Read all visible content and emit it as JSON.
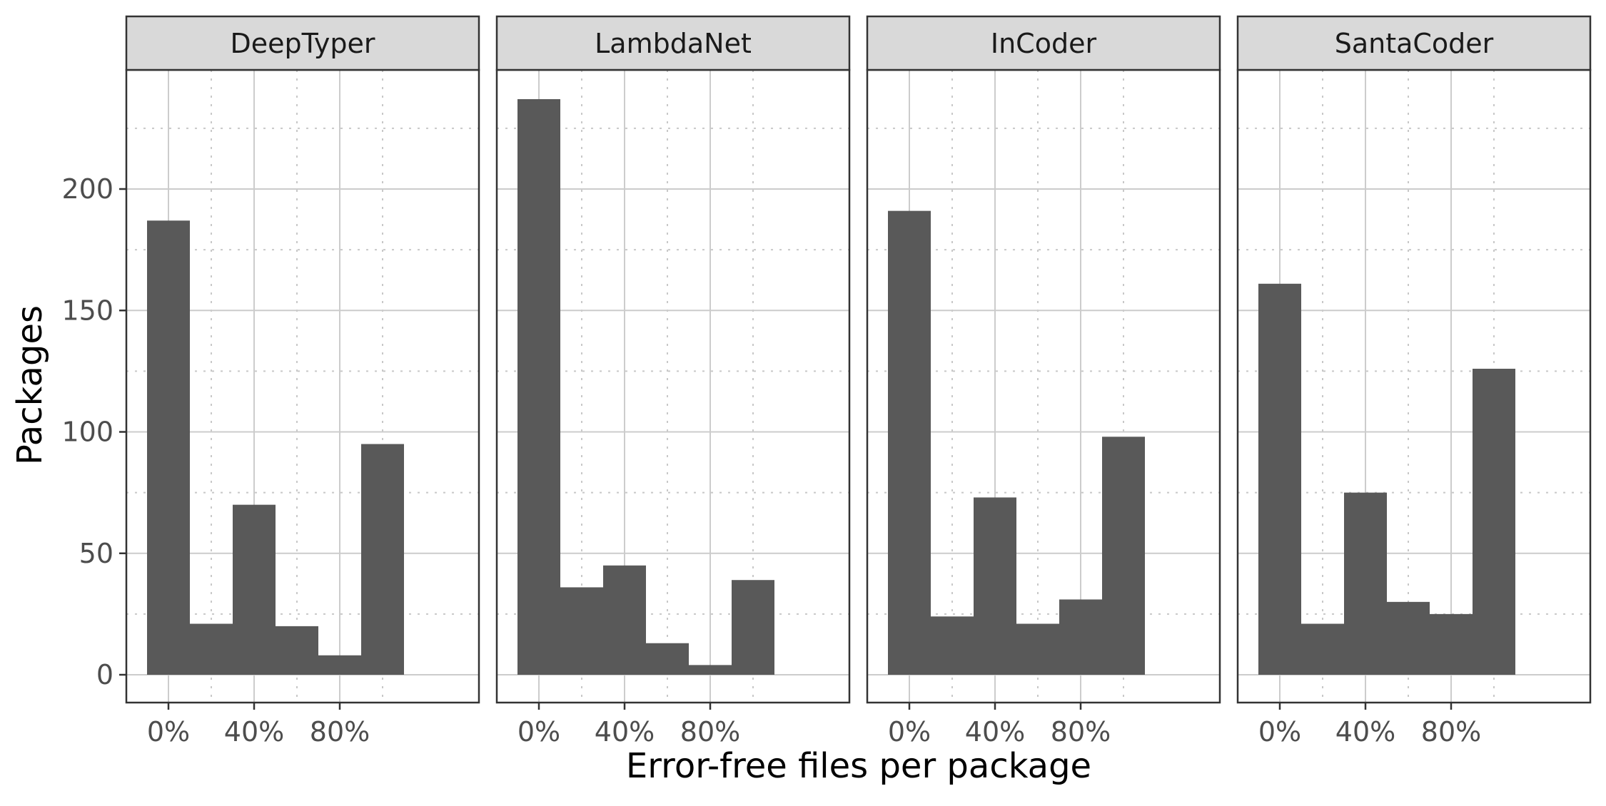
{
  "chart_data": {
    "type": "bar",
    "subtype": "faceted-histogram",
    "xlabel": "Error-free files per package",
    "ylabel": "Packages",
    "x_ticks": [
      "0%",
      "40%",
      "80%"
    ],
    "y_ticks": [
      0,
      50,
      100,
      150,
      200
    ],
    "ylim": [
      0,
      240
    ],
    "bin_centers": [
      0,
      0.2,
      0.4,
      0.6,
      0.8,
      1.0
    ],
    "bar_color": "#595959",
    "grid": true,
    "panels": [
      {
        "name": "DeepTyper",
        "values": [
          187,
          21,
          70,
          20,
          8,
          95
        ]
      },
      {
        "name": "LambdaNet",
        "values": [
          237,
          36,
          45,
          13,
          4,
          39
        ]
      },
      {
        "name": "InCoder",
        "values": [
          191,
          24,
          73,
          21,
          31,
          98
        ]
      },
      {
        "name": "SantaCoder",
        "values": [
          161,
          21,
          75,
          30,
          25,
          126
        ]
      }
    ]
  }
}
